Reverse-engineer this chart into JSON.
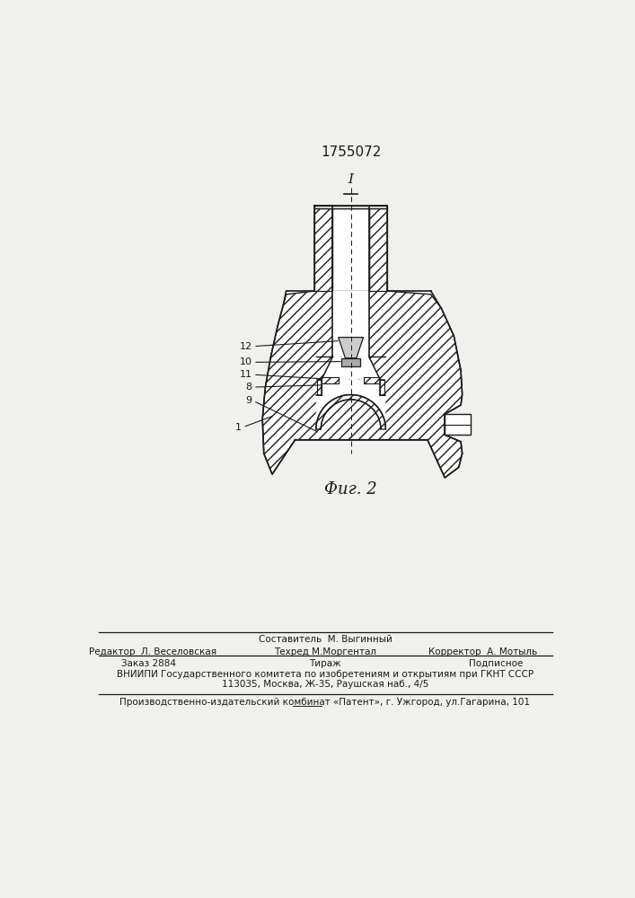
{
  "patent_number": "1755072",
  "fig_label": "Фиг. 2",
  "bg_color": "#f0f0ec",
  "line_color": "#1a1a1a",
  "footer_sestavitel": "Составитель  М. Выгинный",
  "footer_redaktor": "Редактор  Л. Веселовская",
  "footer_tehred": "Техред М.Моргентал",
  "footer_korrektor": "Корректор  А. Мотыль",
  "footer_zakaz": "Заказ 2884",
  "footer_tirazh": "Тираж",
  "footer_podpisnoe": "Подписное",
  "footer_vniipи": "ВНИИПИ Государственного комитета по изобретениям и открытиям при ГКНТ СССР",
  "footer_address": "113035, Москва, Ж-35, Раушская наб., 4/5",
  "footer_proizv": "Производственно-издательский комбинат «Патент», г. Ужгород, ул.Гагарина, 101"
}
